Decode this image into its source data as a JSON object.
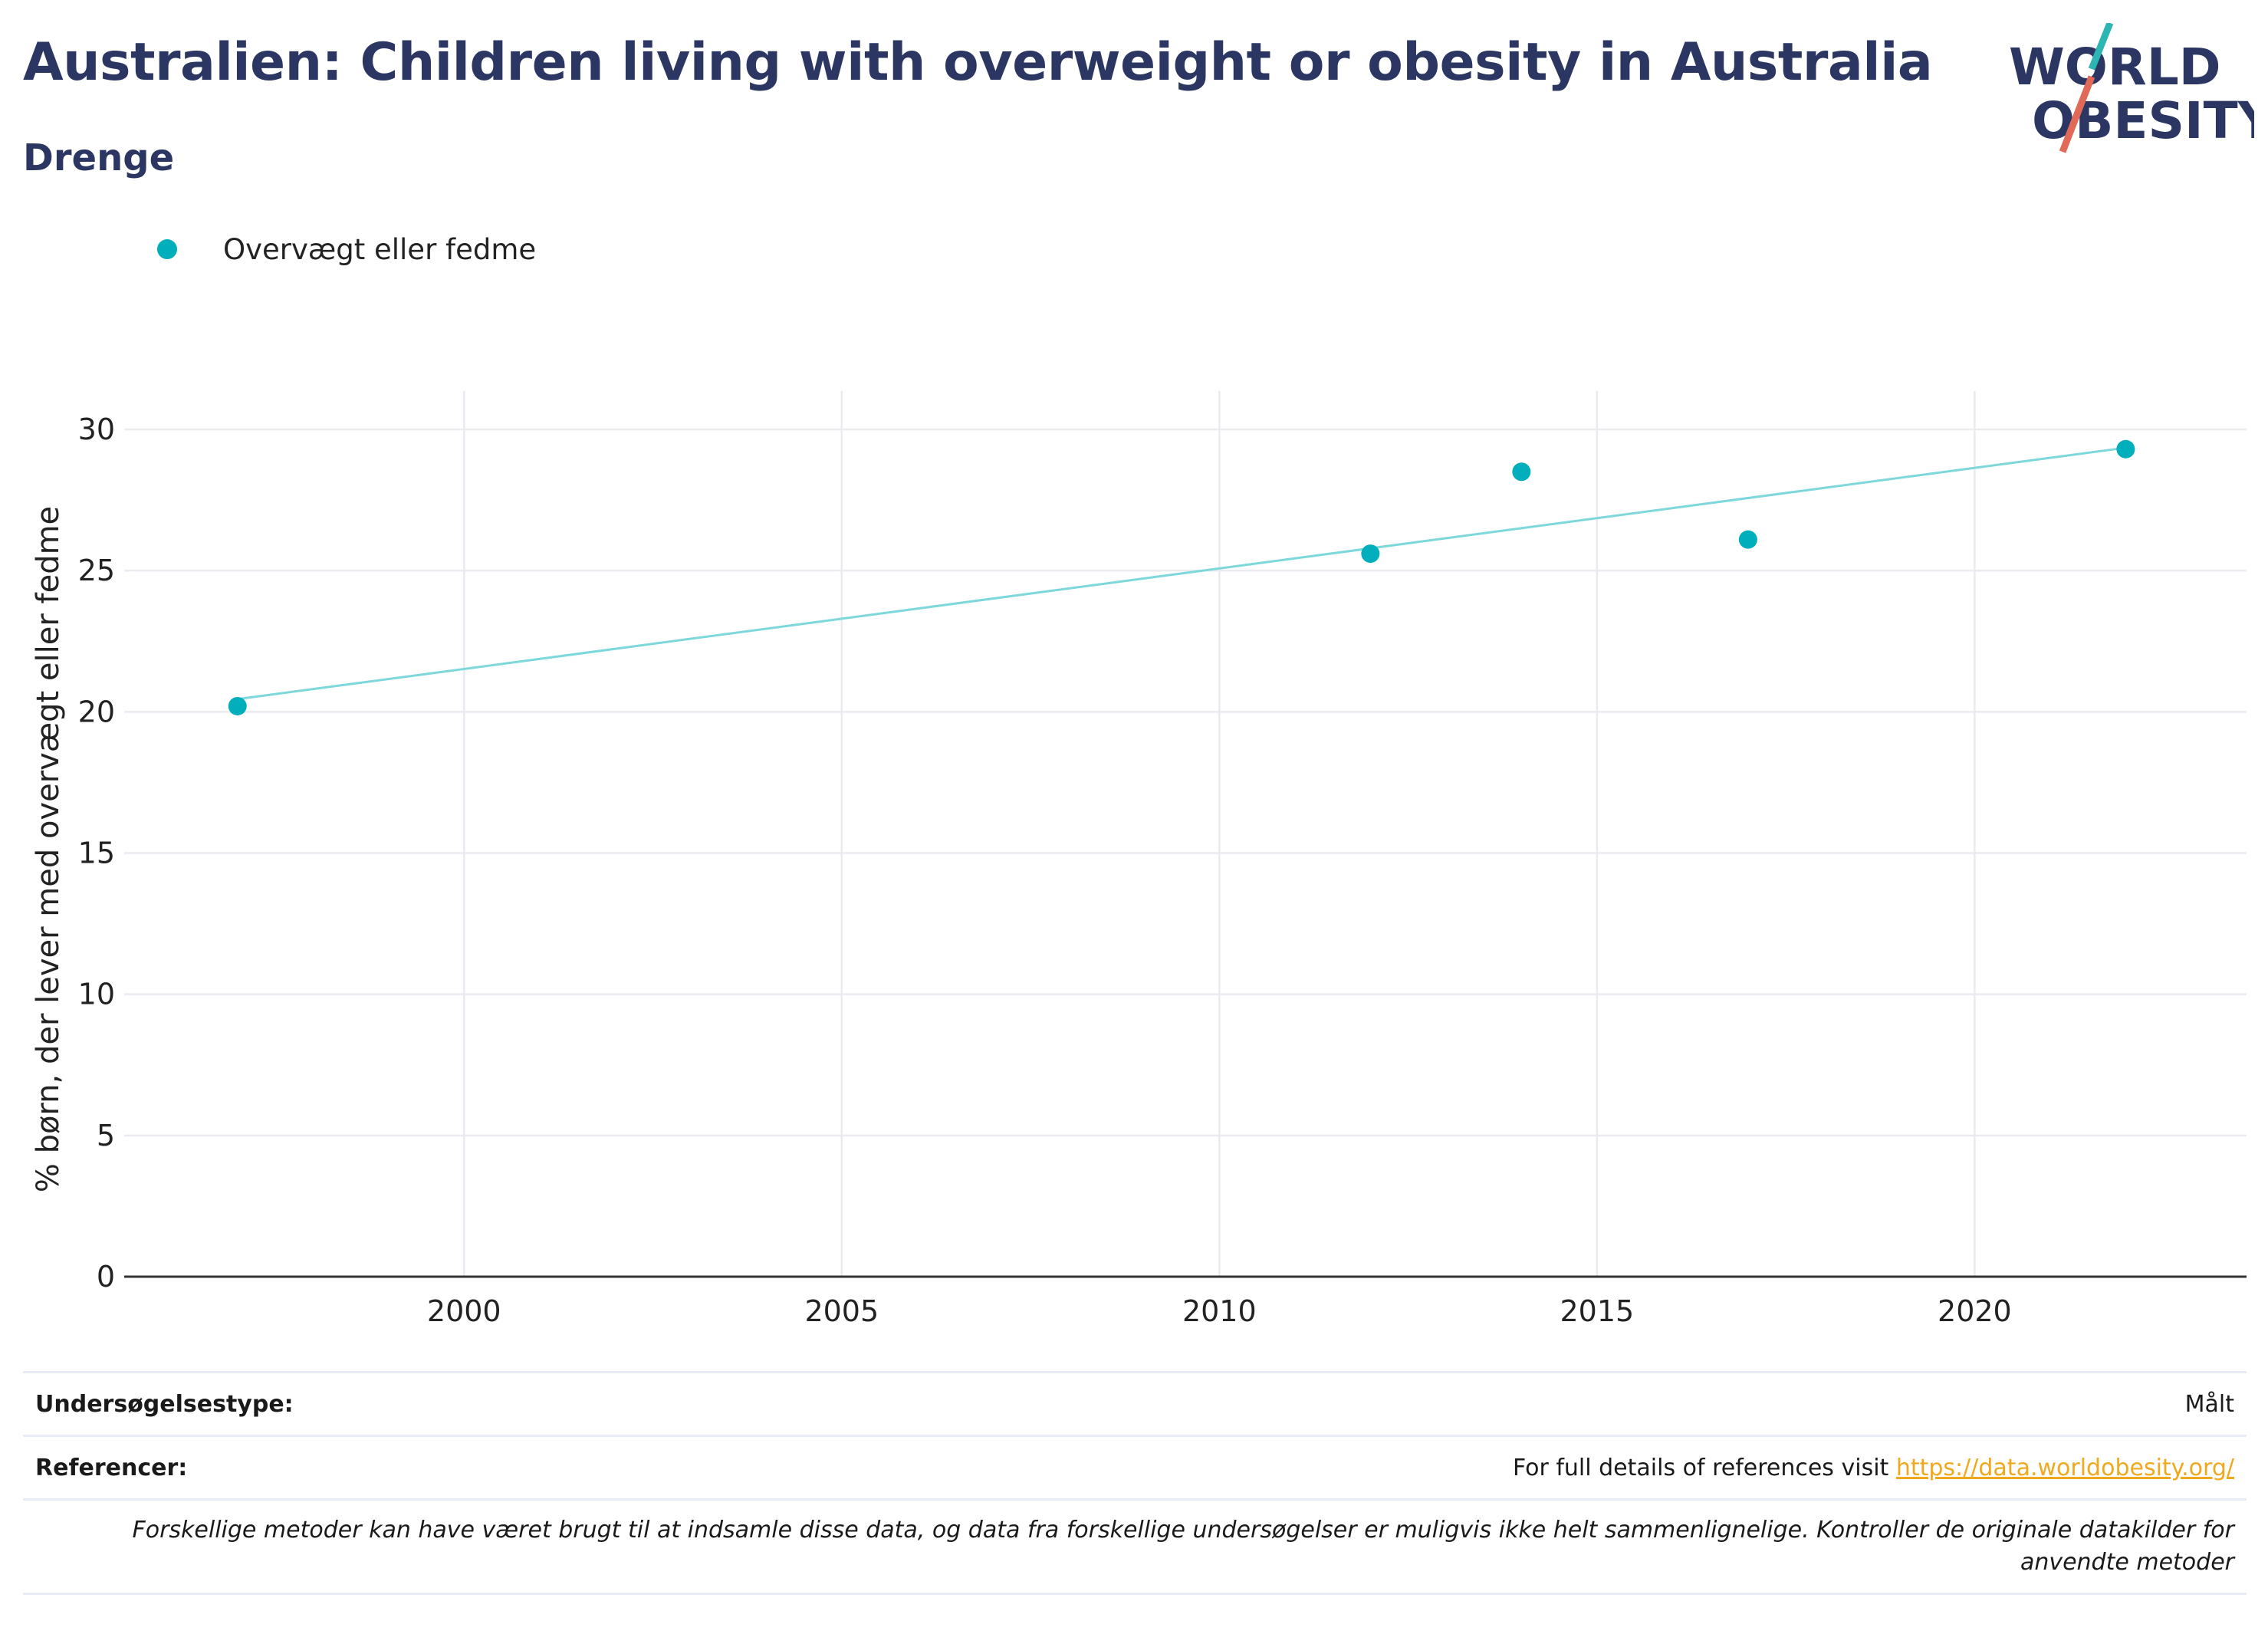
{
  "header": {
    "title": "Australien: Children living with overweight or obesity in Australia",
    "subtitle": "Drenge",
    "logo_line1": "WORLD",
    "logo_line2": "OBESITY"
  },
  "legend": {
    "label": "Overvægt eller fedme"
  },
  "colors": {
    "points": "#00aebc",
    "trend": "#7dd8dc",
    "title": "#2b3762",
    "link": "#f0a91c"
  },
  "chart_data": {
    "type": "scatter",
    "title": "Australien: Children living with overweight or obesity in Australia",
    "subtitle": "Drenge",
    "ylabel": "% børn, der lever med overvægt eller fedme",
    "xlabel": "",
    "xlim": [
      1995.5,
      2023.6
    ],
    "ylim": [
      0,
      30
    ],
    "x_ticks": [
      2000,
      2005,
      2010,
      2015,
      2020
    ],
    "y_ticks": [
      0,
      5,
      10,
      15,
      20,
      25,
      30
    ],
    "grid": true,
    "legend_position": "top-left",
    "series": [
      {
        "name": "Overvægt eller fedme",
        "x": [
          1997,
          2012,
          2014,
          2017,
          2022
        ],
        "y": [
          20.2,
          25.6,
          28.5,
          26.1,
          29.3
        ]
      }
    ],
    "trendline": {
      "x": [
        1997,
        2022
      ],
      "y": [
        20.45,
        29.35
      ]
    }
  },
  "footer": {
    "survey_label": "Undersøgelsestype:",
    "survey_value": "Målt",
    "ref_label": "Referencer:",
    "ref_text": "For full details of references visit",
    "ref_link": "https://data.worldobesity.org/",
    "note": "Forskellige metoder kan have været brugt til at indsamle disse data, og data fra forskellige undersøgelser er muligvis ikke helt sammenlignelige. Kontroller de originale datakilder for anvendte metoder"
  }
}
